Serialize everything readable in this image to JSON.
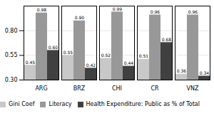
{
  "chart_data": {
    "type": "bar",
    "categories": [
      "ARG",
      "BRZ",
      "CHI",
      "CR",
      "VNZ"
    ],
    "series": [
      {
        "name": "Gini Coef",
        "color": "#c8c8c8",
        "values": [
          0.45,
          0.55,
          0.52,
          0.51,
          0.36
        ],
        "value_labels": [
          "0.45",
          "0.55",
          "0.52",
          "0.51",
          "0.36"
        ]
      },
      {
        "name": "Literacy",
        "color": "#989898",
        "values": [
          0.98,
          0.9,
          0.99,
          0.96,
          0.96
        ],
        "value_labels": [
          "0.98",
          "0.90",
          "0.99",
          "0.96",
          "0.96"
        ]
      },
      {
        "name": "Health Expenditure: Public as % of Total",
        "color": "#404040",
        "values": [
          0.6,
          0.42,
          0.44,
          0.68,
          0.34
        ],
        "value_labels": [
          "0.60",
          "0.42",
          "0.44",
          "0.68",
          "0.34"
        ]
      }
    ],
    "ylim": [
      0.3,
      1.05
    ],
    "yticks": [
      {
        "value": 0.3,
        "label": "0.30"
      },
      {
        "value": 0.55,
        "label": "0.55"
      },
      {
        "value": 0.8,
        "label": "0.80"
      }
    ],
    "grid": true,
    "legend": "bottom",
    "data_labels": true
  }
}
